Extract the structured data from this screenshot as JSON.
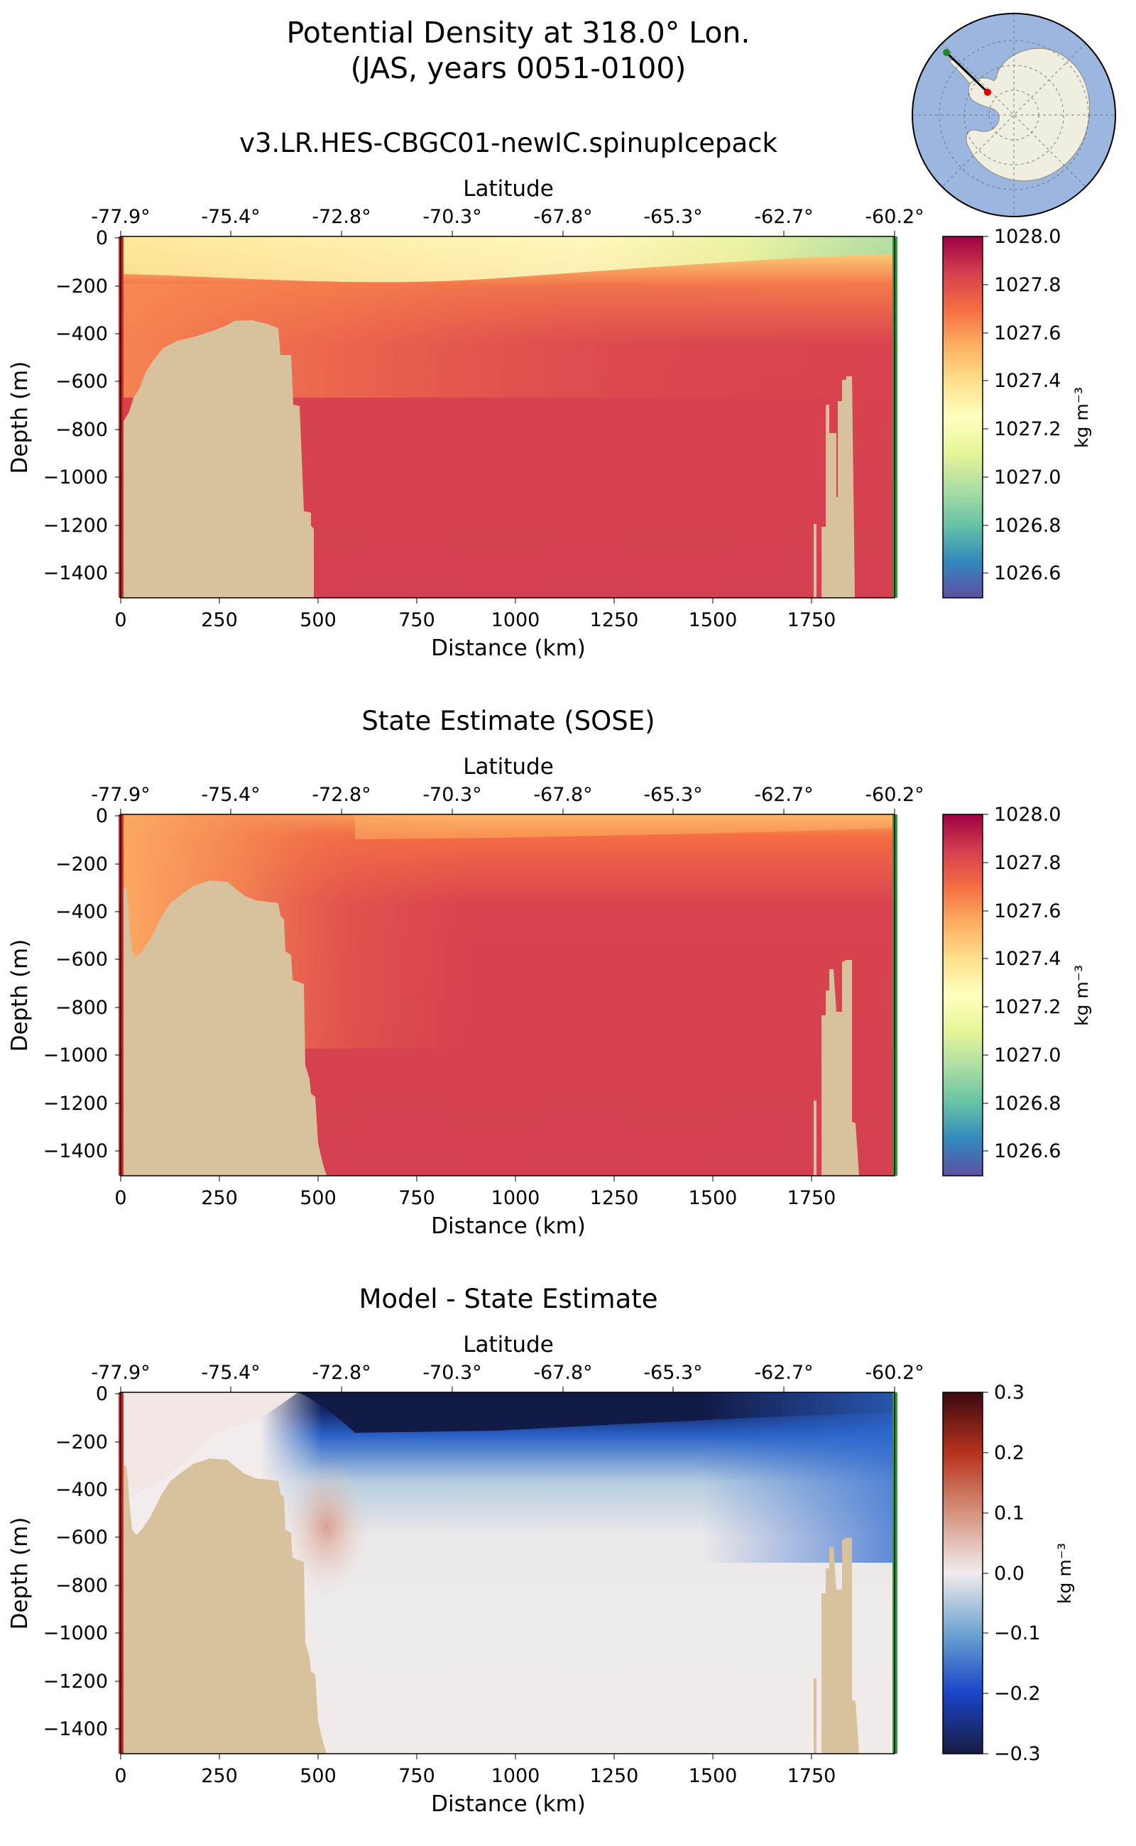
{
  "title_line1": "Potential Density at 318.0° Lon.",
  "title_line2": "(JAS, years 0051-0100)",
  "colors": {
    "land": "#d8c29d",
    "left_marker": "#d62728",
    "right_marker": "#2ca02c",
    "ocean_map": "#9bb7e0",
    "ice_map": "#efeee0"
  },
  "chart_data": [
    {
      "type": "heatmap",
      "title": "v3.LR.HES-CBGC01-newIC.spinupIcepack",
      "xlabel": "Distance (km)",
      "ylabel": "Depth (m)",
      "top_xlabel": "Latitude",
      "xlim": [
        0,
        1960
      ],
      "ylim": [
        -1500,
        0
      ],
      "xticks": [
        "0",
        "250",
        "500",
        "750",
        "1000",
        "1250",
        "1500",
        "1750"
      ],
      "yticks": [
        "0",
        "−200",
        "−400",
        "−600",
        "−800",
        "−1000",
        "−1200",
        "−1400"
      ],
      "lat_ticks": [
        "-77.9°",
        "-75.4°",
        "-72.8°",
        "-70.3°",
        "-67.8°",
        "-65.3°",
        "-62.7°",
        "-60.2°"
      ],
      "colorbar": {
        "label": "kg m⁻³",
        "range": [
          1026.5,
          1028.0
        ],
        "ticks": [
          "1028.0",
          "1027.8",
          "1027.6",
          "1027.4",
          "1027.2",
          "1027.0",
          "1026.8",
          "1026.6"
        ],
        "colormap": "Spectral_r"
      },
      "field_summary": {
        "surface_density_range": [
          1026.9,
          1027.3
        ],
        "deep_density": 1027.8
      }
    },
    {
      "type": "heatmap",
      "title": "State Estimate (SOSE)",
      "xlabel": "Distance (km)",
      "ylabel": "Depth (m)",
      "top_xlabel": "Latitude",
      "xlim": [
        0,
        1960
      ],
      "ylim": [
        -1500,
        0
      ],
      "xticks": [
        "0",
        "250",
        "500",
        "750",
        "1000",
        "1250",
        "1500",
        "1750"
      ],
      "yticks": [
        "0",
        "−200",
        "−400",
        "−600",
        "−800",
        "−1000",
        "−1200",
        "−1400"
      ],
      "lat_ticks": [
        "-77.9°",
        "-75.4°",
        "-72.8°",
        "-70.3°",
        "-67.8°",
        "-65.3°",
        "-62.7°",
        "-60.2°"
      ],
      "colorbar": {
        "label": "kg m⁻³",
        "range": [
          1026.5,
          1028.0
        ],
        "ticks": [
          "1028.0",
          "1027.8",
          "1027.6",
          "1027.4",
          "1027.2",
          "1027.0",
          "1026.8",
          "1026.6"
        ],
        "colormap": "Spectral_r"
      },
      "field_summary": {
        "surface_density_range": [
          1027.4,
          1027.6
        ],
        "deep_density": 1027.8
      }
    },
    {
      "type": "heatmap",
      "title": "Model - State Estimate",
      "xlabel": "Distance (km)",
      "ylabel": "Depth (m)",
      "top_xlabel": "Latitude",
      "xlim": [
        0,
        1960
      ],
      "ylim": [
        -1500,
        0
      ],
      "xticks": [
        "0",
        "250",
        "500",
        "750",
        "1000",
        "1250",
        "1500",
        "1750"
      ],
      "yticks": [
        "0",
        "−200",
        "−400",
        "−600",
        "−800",
        "−1000",
        "−1200",
        "−1400"
      ],
      "lat_ticks": [
        "-77.9°",
        "-75.4°",
        "-72.8°",
        "-70.3°",
        "-67.8°",
        "-65.3°",
        "-62.7°",
        "-60.2°"
      ],
      "colorbar": {
        "label": "kg m⁻³",
        "range": [
          -0.3,
          0.3
        ],
        "ticks": [
          "0.3",
          "0.2",
          "0.1",
          "0.0",
          "−0.1",
          "−0.2",
          "−0.3"
        ],
        "colormap": "balance"
      },
      "field_summary": {
        "surface_difference_range": [
          -0.3,
          -0.2
        ],
        "shelf_slope_difference": 0.1,
        "deep_difference": 0.0
      }
    }
  ]
}
